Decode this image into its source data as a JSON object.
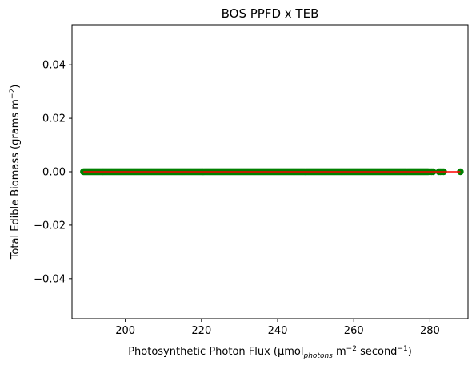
{
  "chart_data": {
    "type": "scatter",
    "title": "BOS PPFD x TEB",
    "xlabel": {
      "base": "Photosynthetic Photon Flux (µmol",
      "sub": "photons",
      "unit1": " m",
      "exp1": "−2",
      "unit2": " second",
      "exp2": "−1",
      "close": ")"
    },
    "ylabel": {
      "base": "Total Edible Biomass (grams m",
      "exp": "−2",
      "close": ")"
    },
    "xlim": [
      186,
      290
    ],
    "ylim": [
      -0.055,
      0.055
    ],
    "xticks": [
      200,
      220,
      240,
      260,
      280
    ],
    "xtick_labels": [
      "200",
      "220",
      "240",
      "260",
      "280"
    ],
    "yticks": [
      0.04,
      0.02,
      0.0,
      -0.02,
      -0.04
    ],
    "ytick_labels": [
      "0.04",
      "0.02",
      "0.00",
      "−0.02",
      "−0.04"
    ],
    "grid": false,
    "series": [
      {
        "marker_color": "#008000",
        "x_start": 189,
        "x_end": 279.6,
        "x_step": 0.2,
        "extra_x": [
          280.0,
          280.4,
          280.8,
          282.4,
          282.8,
          283.2,
          283.6,
          288.0
        ],
        "y": 0.0
      }
    ],
    "fit_line": {
      "color": "#ff0000",
      "x": [
        189,
        288
      ],
      "y": [
        0.0,
        0.0
      ]
    }
  }
}
